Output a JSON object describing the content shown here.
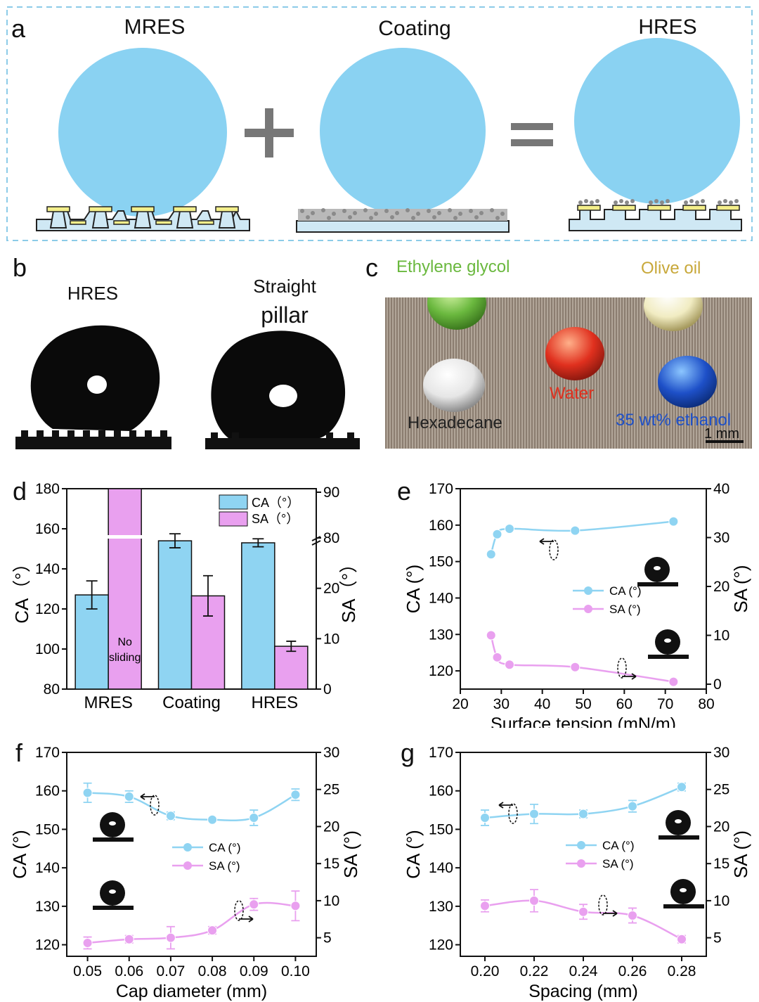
{
  "panels": {
    "a": {
      "letter": "a",
      "titles": [
        "MRES",
        "Coating",
        "HRES"
      ],
      "operators": [
        "+",
        "="
      ]
    },
    "b": {
      "letter": "b",
      "labels": [
        "HRES",
        "Straight",
        "pillar"
      ]
    },
    "c": {
      "letter": "c",
      "liquids": [
        {
          "label": "Ethylene glycol",
          "color": "#6ab83e"
        },
        {
          "label": "Olive oil",
          "color": "#c8a83a"
        },
        {
          "label": "Water",
          "color": "#e0301e"
        },
        {
          "label": "Hexadecane",
          "color": "#222222"
        },
        {
          "label": "35 wt% ethanol",
          "color": "#1e50c8"
        }
      ],
      "scale": "1 mm"
    },
    "d": {
      "letter": "d",
      "note_line1": "No",
      "note_line2": "sliding"
    },
    "e": {
      "letter": "e"
    },
    "f": {
      "letter": "f"
    },
    "g": {
      "letter": "g"
    }
  },
  "colors": {
    "ca": "#8fd4f2",
    "sa": "#e9a0ef",
    "droplet": "#8ad2f2",
    "frame": "#7ec8ea"
  },
  "chart_data": [
    {
      "id": "d",
      "type": "bar",
      "categories": [
        "MRES",
        "Coating",
        "HRES"
      ],
      "series": [
        {
          "name": "CA（°）",
          "axis": "left",
          "values": [
            127,
            154,
            153
          ],
          "errors": [
            7,
            3.5,
            2
          ]
        },
        {
          "name": "SA（°）",
          "axis": "right",
          "values": [
            90,
            18.5,
            8.5
          ],
          "errors": [
            null,
            4,
            1
          ]
        }
      ],
      "ylabel": "CA（°）",
      "y2label": "SA（°）",
      "ylim": [
        80,
        180
      ],
      "y2lim": [
        0,
        90
      ],
      "y2_break": [
        30,
        80
      ],
      "yticks": [
        80,
        100,
        120,
        140,
        160,
        180
      ],
      "y2ticks": [
        0,
        10,
        20,
        80,
        90
      ],
      "legend": "top-right"
    },
    {
      "id": "e",
      "type": "line",
      "xlabel": "Surface tension (mN/m)",
      "ylabel": "CA (°)",
      "y2label": "SA (°)",
      "xlim": [
        20,
        80
      ],
      "ylim": [
        115,
        170
      ],
      "y2lim": [
        -1,
        40
      ],
      "xticks": [
        20,
        30,
        40,
        50,
        60,
        70,
        80
      ],
      "yticks": [
        120,
        130,
        140,
        150,
        160,
        170
      ],
      "y2ticks": [
        0,
        10,
        20,
        30,
        40
      ],
      "series": [
        {
          "name": "CA (°)",
          "axis": "left",
          "x": [
            27.5,
            29,
            32,
            48,
            72
          ],
          "y": [
            152,
            157.5,
            159,
            158.5,
            161
          ]
        },
        {
          "name": "SA (°)",
          "axis": "right",
          "x": [
            27.5,
            29,
            32,
            48,
            72
          ],
          "y": [
            10,
            5.5,
            4,
            3.5,
            0.5
          ]
        }
      ],
      "legend": "center-right"
    },
    {
      "id": "f",
      "type": "line",
      "xlabel": "Cap diameter (mm)",
      "ylabel": "CA (°)",
      "y2label": "SA (°)",
      "xlim": [
        0.045,
        0.105
      ],
      "ylim": [
        117,
        170
      ],
      "y2lim": [
        2.5,
        30
      ],
      "xticks": [
        0.05,
        0.06,
        0.07,
        0.08,
        0.09,
        0.1
      ],
      "xticklabels": [
        "0.05",
        "0.06",
        "0.07",
        "0.08",
        "0.09",
        "0.10"
      ],
      "yticks": [
        120,
        130,
        140,
        150,
        160,
        170
      ],
      "y2ticks": [
        5,
        10,
        15,
        20,
        25,
        30
      ],
      "series": [
        {
          "name": "CA (°)",
          "axis": "left",
          "x": [
            0.05,
            0.06,
            0.07,
            0.08,
            0.09,
            0.1
          ],
          "y": [
            159.5,
            158.5,
            153.5,
            152.5,
            153,
            159
          ],
          "errors": [
            2.5,
            1.5,
            1,
            0.5,
            2,
            1.5
          ]
        },
        {
          "name": "SA (°)",
          "axis": "right",
          "x": [
            0.05,
            0.06,
            0.07,
            0.08,
            0.09,
            0.1
          ],
          "y": [
            4.3,
            4.8,
            5.0,
            6.0,
            9.5,
            9.3
          ],
          "errors": [
            0.8,
            0.5,
            1.5,
            0.5,
            0.8,
            2
          ]
        }
      ],
      "legend": "center"
    },
    {
      "id": "g",
      "type": "line",
      "xlabel": "Spacing (mm)",
      "ylabel": "CA (°)",
      "y2label": "SA (°)",
      "xlim": [
        0.19,
        0.29
      ],
      "ylim": [
        117,
        170
      ],
      "y2lim": [
        2.5,
        30
      ],
      "xticks": [
        0.2,
        0.22,
        0.24,
        0.26,
        0.28
      ],
      "xticklabels": [
        "0.20",
        "0.22",
        "0.24",
        "0.26",
        "0.28"
      ],
      "yticks": [
        120,
        130,
        140,
        150,
        160,
        170
      ],
      "y2ticks": [
        5,
        10,
        15,
        20,
        25,
        30
      ],
      "series": [
        {
          "name": "CA (°)",
          "axis": "left",
          "x": [
            0.2,
            0.22,
            0.24,
            0.26,
            0.28
          ],
          "y": [
            153,
            154,
            154,
            156,
            161
          ],
          "errors": [
            2,
            2.5,
            1,
            1.5,
            1
          ]
        },
        {
          "name": "SA (°)",
          "axis": "right",
          "x": [
            0.2,
            0.22,
            0.24,
            0.26,
            0.28
          ],
          "y": [
            9.3,
            10,
            8.5,
            8,
            4.8
          ],
          "errors": [
            0.8,
            1.5,
            1,
            1,
            0.5
          ]
        }
      ],
      "legend": "center"
    }
  ]
}
